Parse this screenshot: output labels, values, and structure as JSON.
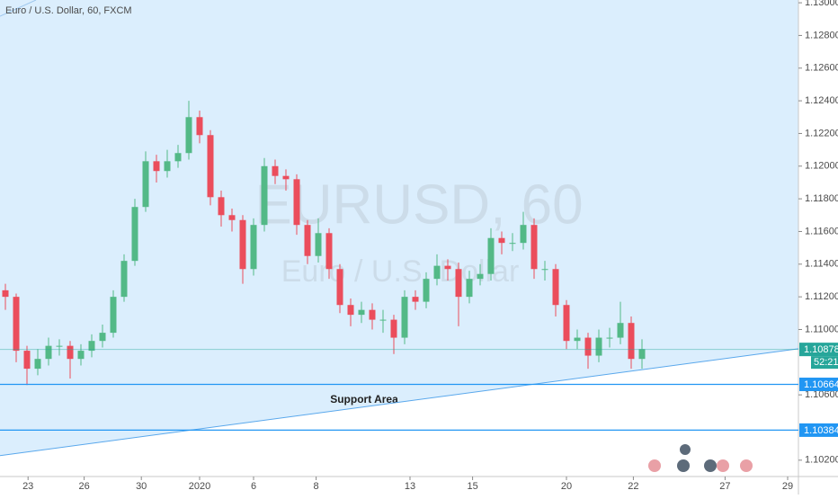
{
  "chart_data": {
    "type": "candlestick",
    "title": "Euro / U.S. Dollar, 60, FXCM",
    "watermark_symbol": "EURUSD, 60",
    "watermark_name": "Euro / U.S. Dollar",
    "annotation": "Support Area",
    "up_color": "#53b987",
    "down_color": "#eb4d5c",
    "x": [
      0,
      1,
      2,
      3,
      4,
      5,
      6,
      7,
      8,
      9,
      10,
      11,
      12,
      13,
      14,
      15,
      16,
      17,
      18,
      19,
      20,
      21,
      22,
      23,
      24,
      25,
      26,
      27,
      28,
      29,
      30,
      31,
      32,
      33,
      34,
      35,
      36,
      37,
      38,
      39,
      40,
      41,
      42,
      43,
      44,
      45,
      46,
      47,
      48,
      49,
      50,
      51,
      52,
      53,
      54,
      55,
      56,
      57,
      58,
      59
    ],
    "open": [
      1.1124,
      1.112,
      1.1087,
      1.1076,
      1.1082,
      1.109,
      1.109,
      1.1082,
      1.1087,
      1.1093,
      1.1098,
      1.112,
      1.1142,
      1.1175,
      1.1203,
      1.1197,
      1.1203,
      1.1208,
      1.123,
      1.1219,
      1.1181,
      1.117,
      1.1167,
      1.1137,
      1.1164,
      1.12,
      1.1194,
      1.1192,
      1.1164,
      1.1145,
      1.1159,
      1.1137,
      1.1115,
      1.1109,
      1.1112,
      1.1106,
      1.1106,
      1.1095,
      1.112,
      1.1117,
      1.1131,
      1.1139,
      1.1137,
      1.112,
      1.1131,
      1.1134,
      1.1156,
      1.1153,
      1.1153,
      1.1164,
      1.1137,
      1.1137,
      1.1115,
      1.1093,
      1.1095,
      1.1084,
      1.1095,
      1.1095,
      1.1104,
      1.1082
    ],
    "high": [
      1.1128,
      1.1122,
      1.109,
      1.1088,
      1.1095,
      1.1094,
      1.1093,
      1.1091,
      1.1097,
      1.1103,
      1.1124,
      1.1146,
      1.118,
      1.1209,
      1.1207,
      1.121,
      1.1213,
      1.124,
      1.1234,
      1.1222,
      1.1185,
      1.1174,
      1.117,
      1.1168,
      1.1205,
      1.1204,
      1.1198,
      1.1195,
      1.1167,
      1.1168,
      1.1162,
      1.114,
      1.1119,
      1.1117,
      1.1116,
      1.1112,
      1.1109,
      1.1124,
      1.1124,
      1.1135,
      1.1146,
      1.1143,
      1.1141,
      1.1136,
      1.114,
      1.1162,
      1.116,
      1.1159,
      1.1172,
      1.1168,
      1.1142,
      1.114,
      1.1118,
      1.11,
      1.1098,
      1.11,
      1.1101,
      1.1117,
      1.1108,
      1.1094
    ],
    "low": [
      1.1112,
      1.108,
      1.1066,
      1.1072,
      1.1078,
      1.1084,
      1.107,
      1.1078,
      1.1083,
      1.1089,
      1.1095,
      1.1117,
      1.1139,
      1.1172,
      1.119,
      1.1193,
      1.1199,
      1.1204,
      1.1214,
      1.1176,
      1.1163,
      1.116,
      1.1128,
      1.1133,
      1.116,
      1.1189,
      1.1185,
      1.1158,
      1.114,
      1.1141,
      1.1131,
      1.111,
      1.1102,
      1.1104,
      1.11,
      1.1098,
      1.1085,
      1.1091,
      1.1112,
      1.1113,
      1.1127,
      1.113,
      1.1102,
      1.1116,
      1.1127,
      1.113,
      1.1146,
      1.1148,
      1.1149,
      1.1131,
      1.113,
      1.1108,
      1.1088,
      1.1088,
      1.1076,
      1.108,
      1.1089,
      1.1091,
      1.1076,
      1.1076
    ],
    "close": [
      1.112,
      1.1087,
      1.1076,
      1.1082,
      1.109,
      1.109,
      1.1082,
      1.1087,
      1.1093,
      1.1098,
      1.112,
      1.1142,
      1.1175,
      1.1203,
      1.1197,
      1.1203,
      1.1208,
      1.123,
      1.1219,
      1.1181,
      1.117,
      1.1167,
      1.1137,
      1.1164,
      1.12,
      1.1194,
      1.1192,
      1.1164,
      1.1145,
      1.1159,
      1.1137,
      1.1115,
      1.1109,
      1.1112,
      1.1106,
      1.1106,
      1.1095,
      1.112,
      1.1117,
      1.1131,
      1.1139,
      1.1137,
      1.112,
      1.1131,
      1.1134,
      1.1156,
      1.1153,
      1.1153,
      1.1164,
      1.1137,
      1.1137,
      1.1115,
      1.1093,
      1.1095,
      1.1084,
      1.1095,
      1.1095,
      1.1104,
      1.1082,
      1.1088
    ],
    "xlim": [
      -0.5,
      73.5
    ],
    "xticks": [
      {
        "value": 2.1,
        "label": "23"
      },
      {
        "value": 7.3,
        "label": "26"
      },
      {
        "value": 12.6,
        "label": "30"
      },
      {
        "value": 18,
        "label": "2020"
      },
      {
        "value": 23,
        "label": "6"
      },
      {
        "value": 28.8,
        "label": "8"
      },
      {
        "value": 37.5,
        "label": "13"
      },
      {
        "value": 43.3,
        "label": "15"
      },
      {
        "value": 52,
        "label": "20"
      },
      {
        "value": 58.2,
        "label": "22"
      },
      {
        "value": 66.7,
        "label": "27"
      },
      {
        "value": 72.5,
        "label": "29"
      }
    ],
    "ylim": [
      1.101,
      1.13017
    ],
    "yticks": [
      {
        "value": 1.102,
        "label": "1.10200"
      },
      {
        "value": 1.106,
        "label": "1.10600"
      },
      {
        "value": 1.11,
        "label": "1.11000"
      },
      {
        "value": 1.112,
        "label": "1.11200"
      },
      {
        "value": 1.114,
        "label": "1.11400"
      },
      {
        "value": 1.116,
        "label": "1.11600"
      },
      {
        "value": 1.118,
        "label": "1.11800"
      },
      {
        "value": 1.12,
        "label": "1.12000"
      },
      {
        "value": 1.122,
        "label": "1.12200"
      },
      {
        "value": 1.124,
        "label": "1.12400"
      },
      {
        "value": 1.126,
        "label": "1.12600"
      },
      {
        "value": 1.128,
        "label": "1.12800"
      },
      {
        "value": 1.13,
        "label": "1.13000"
      }
    ],
    "levels": [
      1.10664,
      1.10384
    ],
    "level_color": "#2196f3",
    "last_price": 1.10878,
    "last_color": "#26a69a",
    "countdown": "52:21",
    "trendline": {
      "x": [
        -0.5,
        73.5
      ],
      "y": [
        1.10228,
        1.10882
      ]
    }
  }
}
